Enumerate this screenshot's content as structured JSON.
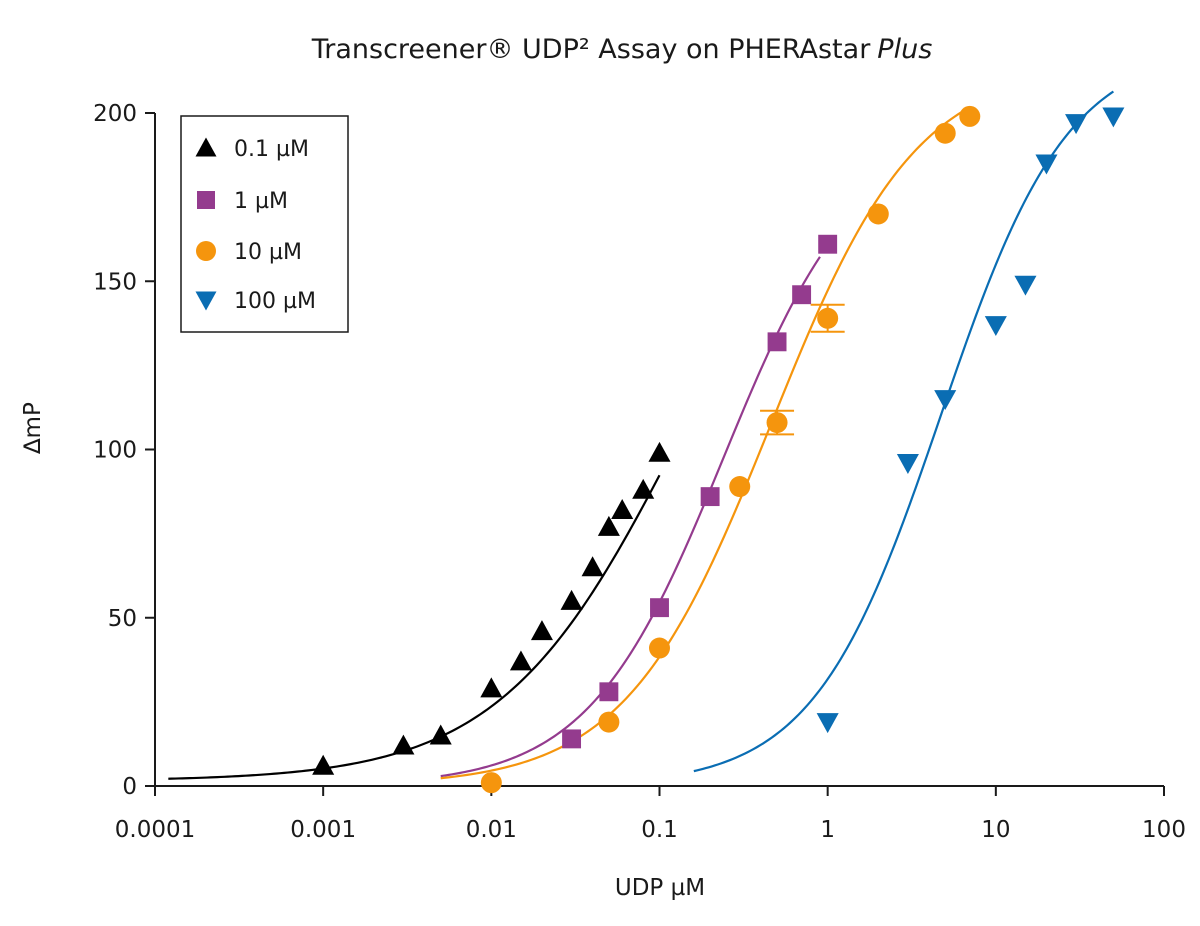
{
  "chart_data": {
    "type": "scatter",
    "title": {
      "main": "Transcreener® UDP² Assay on PHERAstar",
      "italic": "Plus"
    },
    "xlabel": "UDP µM",
    "ylabel": "∆mP",
    "x_scale": "log",
    "xlim": [
      0.0001,
      100
    ],
    "ylim": [
      0,
      200
    ],
    "x_ticks": [
      {
        "value": 0.0001,
        "label": "0.0001"
      },
      {
        "value": 0.001,
        "label": "0.001"
      },
      {
        "value": 0.01,
        "label": "0.01"
      },
      {
        "value": 0.1,
        "label": "0.1"
      },
      {
        "value": 1,
        "label": "1"
      },
      {
        "value": 10,
        "label": "10"
      },
      {
        "value": 100,
        "label": "100"
      }
    ],
    "y_ticks": [
      {
        "value": 0,
        "label": "0"
      },
      {
        "value": 50,
        "label": "50"
      },
      {
        "value": 100,
        "label": "100"
      },
      {
        "value": 150,
        "label": "150"
      },
      {
        "value": 200,
        "label": "200"
      }
    ],
    "grid": false,
    "legend_position": "top-left",
    "series": [
      {
        "name": "0.1 µM",
        "marker": "triangle-up",
        "color": "#000000",
        "points": [
          {
            "x": 0.001,
            "y": 6
          },
          {
            "x": 0.003,
            "y": 12
          },
          {
            "x": 0.005,
            "y": 15
          },
          {
            "x": 0.01,
            "y": 29
          },
          {
            "x": 0.015,
            "y": 37
          },
          {
            "x": 0.02,
            "y": 46
          },
          {
            "x": 0.03,
            "y": 55
          },
          {
            "x": 0.04,
            "y": 65
          },
          {
            "x": 0.05,
            "y": 77
          },
          {
            "x": 0.06,
            "y": 82
          },
          {
            "x": 0.08,
            "y": 88
          },
          {
            "x": 0.1,
            "y": 99
          }
        ],
        "fit": {
          "bottom": 1.5,
          "top": 205,
          "ec50": 0.13,
          "hill": 0.82,
          "xmin": 0.00012,
          "xmax": 0.1
        }
      },
      {
        "name": "1 µM",
        "marker": "square",
        "color": "#943b8e",
        "points": [
          {
            "x": 0.03,
            "y": 14
          },
          {
            "x": 0.05,
            "y": 28
          },
          {
            "x": 0.1,
            "y": 53
          },
          {
            "x": 0.2,
            "y": 86
          },
          {
            "x": 0.5,
            "y": 132
          },
          {
            "x": 0.7,
            "y": 146
          },
          {
            "x": 1,
            "y": 161
          }
        ],
        "fit": {
          "bottom": 0,
          "top": 195,
          "ec50": 0.24,
          "hill": 1.08,
          "xmin": 0.005,
          "xmax": 0.9
        }
      },
      {
        "name": "10 µM",
        "marker": "circle",
        "color": "#f5950d",
        "points": [
          {
            "x": 0.01,
            "y": 1
          },
          {
            "x": 0.05,
            "y": 19
          },
          {
            "x": 0.1,
            "y": 41
          },
          {
            "x": 0.3,
            "y": 89
          },
          {
            "x": 0.5,
            "y": 108,
            "err": 3.5
          },
          {
            "x": 1,
            "y": 139,
            "err": 4
          },
          {
            "x": 2,
            "y": 170
          },
          {
            "x": 5,
            "y": 194
          },
          {
            "x": 7,
            "y": 199
          }
        ],
        "fit": {
          "bottom": 0,
          "top": 215,
          "ec50": 0.46,
          "hill": 1.0,
          "xmin": 0.005,
          "xmax": 7
        }
      },
      {
        "name": "100 µM",
        "marker": "triangle-down",
        "color": "#0a6db3",
        "points": [
          {
            "x": 1,
            "y": 19
          },
          {
            "x": 3,
            "y": 96
          },
          {
            "x": 5,
            "y": 115
          },
          {
            "x": 10,
            "y": 137
          },
          {
            "x": 15,
            "y": 149
          },
          {
            "x": 20,
            "y": 185
          },
          {
            "x": 30,
            "y": 197
          },
          {
            "x": 50,
            "y": 199
          }
        ],
        "fit": {
          "bottom": 0,
          "top": 220,
          "ec50": 4.7,
          "hill": 1.15,
          "xmin": 0.16,
          "xmax": 50
        }
      }
    ]
  }
}
